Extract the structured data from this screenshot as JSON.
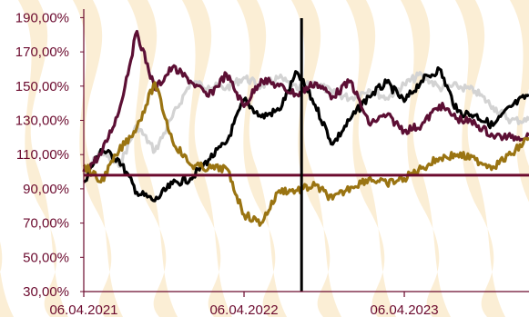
{
  "chart_data": {
    "type": "line",
    "title": "",
    "xlabel": "",
    "ylabel": "",
    "y_ticks": [
      "30,00%",
      "50,00%",
      "70,00%",
      "90,00%",
      "110,00%",
      "130,00%",
      "150,00%",
      "170,00%",
      "190,00%"
    ],
    "y_tick_values": [
      30,
      50,
      70,
      90,
      110,
      130,
      150,
      170,
      190
    ],
    "x_ticks": [
      "06.04.2021",
      "06.04.2022",
      "06.04.2023"
    ],
    "x_tick_dates": [
      "2021-04-06",
      "2022-04-06",
      "2023-04-06"
    ],
    "ylim": [
      30,
      195
    ],
    "xlim": [
      "2021-04-06",
      "2024-01-15"
    ],
    "grid": false,
    "legend": "none",
    "reference_line": {
      "y": 98,
      "color": "#6b0a2e"
    },
    "vertical_marker": {
      "x": "2022-08-15",
      "color": "#000000"
    },
    "colors": {
      "axis": "#6b0a2e",
      "tick_label": "#6b0a2e",
      "background_pattern": "#fbecd0"
    },
    "series": [
      {
        "color": "#d3d3d3",
        "x": [
          "2021-04-06",
          "2021-05-15",
          "2021-06-25",
          "2021-08-05",
          "2021-09-15",
          "2021-10-25",
          "2021-12-05",
          "2022-01-15",
          "2022-02-25",
          "2022-04-06",
          "2022-05-15",
          "2022-06-25",
          "2022-08-05",
          "2022-09-15",
          "2022-10-25",
          "2022-12-05",
          "2023-01-15",
          "2023-02-25",
          "2023-04-06",
          "2023-05-15",
          "2023-06-25",
          "2023-08-05",
          "2023-09-15",
          "2023-10-25",
          "2023-12-05",
          "2024-01-15"
        ],
        "values": [
          98,
          112,
          103,
          127,
          112,
          132,
          152,
          150,
          149,
          155,
          150,
          155,
          148,
          152,
          146,
          143,
          148,
          143,
          151,
          157,
          149,
          150,
          147,
          138,
          130,
          130
        ]
      },
      {
        "color": "#000000",
        "x": [
          "2021-04-06",
          "2021-05-15",
          "2021-06-25",
          "2021-08-05",
          "2021-09-15",
          "2021-10-25",
          "2021-12-05",
          "2022-01-15",
          "2022-02-25",
          "2022-04-06",
          "2022-05-15",
          "2022-06-25",
          "2022-08-05",
          "2022-09-15",
          "2022-10-25",
          "2022-12-05",
          "2023-01-15",
          "2023-02-25",
          "2023-04-06",
          "2023-05-15",
          "2023-06-25",
          "2023-08-05",
          "2023-09-15",
          "2023-10-25",
          "2023-12-05",
          "2024-01-15"
        ],
        "values": [
          94,
          113,
          107,
          88,
          83,
          93,
          96,
          107,
          117,
          142,
          132,
          136,
          158,
          139,
          116,
          131,
          144,
          152,
          141,
          153,
          160,
          135,
          133,
          127,
          138,
          145
        ]
      },
      {
        "color": "#5c0f34",
        "x": [
          "2021-04-06",
          "2021-05-15",
          "2021-06-25",
          "2021-08-05",
          "2021-09-15",
          "2021-10-25",
          "2021-12-05",
          "2022-01-15",
          "2022-02-25",
          "2022-04-06",
          "2022-05-15",
          "2022-06-25",
          "2022-08-05",
          "2022-09-15",
          "2022-10-25",
          "2022-12-05",
          "2023-01-15",
          "2023-02-25",
          "2023-04-06",
          "2023-05-15",
          "2023-06-25",
          "2023-08-05",
          "2023-09-15",
          "2023-10-25",
          "2023-12-05",
          "2024-01-15"
        ],
        "values": [
          100,
          110,
          135,
          182,
          148,
          161,
          153,
          144,
          157,
          138,
          154,
          150,
          145,
          152,
          144,
          153,
          128,
          133,
          124,
          127,
          139,
          131,
          128,
          121,
          120,
          121
        ]
      },
      {
        "color": "#9a7412",
        "x": [
          "2021-04-06",
          "2021-05-15",
          "2021-06-25",
          "2021-08-05",
          "2021-09-15",
          "2021-10-25",
          "2021-12-05",
          "2022-01-15",
          "2022-02-25",
          "2022-04-06",
          "2022-05-15",
          "2022-06-25",
          "2022-08-05",
          "2022-09-15",
          "2022-10-25",
          "2022-12-05",
          "2023-01-15",
          "2023-02-25",
          "2023-04-06",
          "2023-05-15",
          "2023-06-25",
          "2023-08-05",
          "2023-09-15",
          "2023-10-25",
          "2023-12-05",
          "2024-01-15"
        ],
        "values": [
          104,
          94,
          112,
          126,
          152,
          118,
          104,
          102,
          102,
          75,
          70,
          89,
          89,
          92,
          84,
          91,
          96,
          93,
          96,
          102,
          108,
          110,
          107,
          103,
          110,
          120
        ]
      }
    ]
  }
}
